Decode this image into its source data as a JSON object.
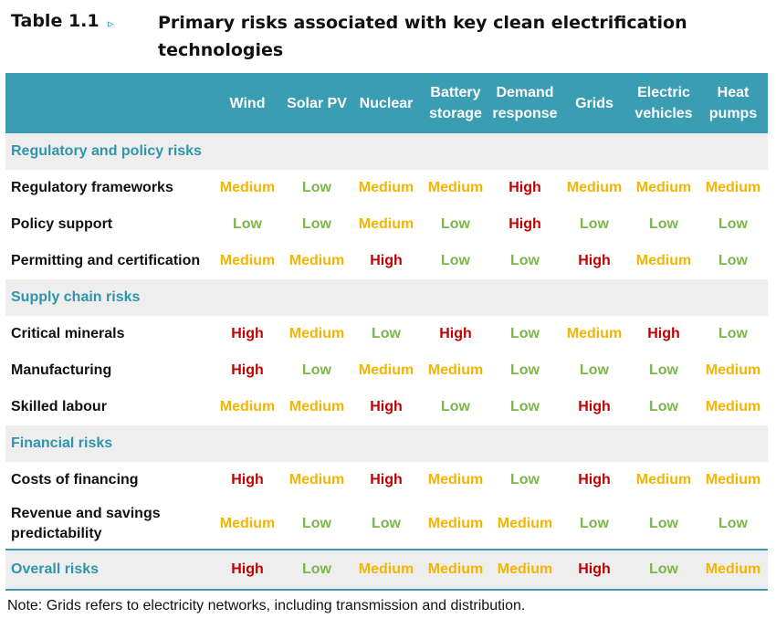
{
  "title": {
    "label": "Table 1.1",
    "arrow": "▹",
    "text": "Primary risks associated with key clean electrification technologies"
  },
  "columns": [
    "Wind",
    "Solar PV",
    "Nuclear",
    "Battery storage",
    "Demand response",
    "Grids",
    "Electric vehicles",
    "Heat pumps"
  ],
  "colors": {
    "High": "#c00000",
    "Medium": "#f4b400",
    "Low": "#7ab648",
    "header": "#3b9db3",
    "section": "#2e95ad"
  },
  "sections": [
    {
      "name": "Regulatory and policy risks",
      "rows": [
        {
          "label": "Regulatory frameworks",
          "values": [
            "Medium",
            "Low",
            "Medium",
            "Medium",
            "High",
            "Medium",
            "Medium",
            "Medium"
          ]
        },
        {
          "label": "Policy support",
          "values": [
            "Low",
            "Low",
            "Medium",
            "Low",
            "High",
            "Low",
            "Low",
            "Low"
          ]
        },
        {
          "label": "Permitting and certification",
          "values": [
            "Medium",
            "Medium",
            "High",
            "Low",
            "Low",
            "High",
            "Medium",
            "Low"
          ]
        }
      ]
    },
    {
      "name": "Supply chain risks",
      "rows": [
        {
          "label": "Critical minerals",
          "values": [
            "High",
            "Medium",
            "Low",
            "High",
            "Low",
            "Medium",
            "High",
            "Low"
          ]
        },
        {
          "label": "Manufacturing",
          "values": [
            "High",
            "Low",
            "Medium",
            "Medium",
            "Low",
            "Low",
            "Low",
            "Medium"
          ]
        },
        {
          "label": "Skilled labour",
          "values": [
            "Medium",
            "Medium",
            "High",
            "Low",
            "Low",
            "High",
            "Low",
            "Medium"
          ]
        }
      ]
    },
    {
      "name": "Financial risks",
      "rows": [
        {
          "label": "Costs of financing",
          "values": [
            "High",
            "Medium",
            "High",
            "Medium",
            "Low",
            "High",
            "Medium",
            "Medium"
          ]
        },
        {
          "label": "Revenue and savings predictability",
          "values": [
            "Medium",
            "Low",
            "Low",
            "Medium",
            "Medium",
            "Low",
            "Low",
            "Low"
          ]
        }
      ]
    }
  ],
  "overall": {
    "label": "Overall risks",
    "values": [
      "High",
      "Low",
      "Medium",
      "Medium",
      "Medium",
      "High",
      "Low",
      "Medium"
    ]
  },
  "note": "Note: Grids refers to electricity networks, including transmission and distribution."
}
